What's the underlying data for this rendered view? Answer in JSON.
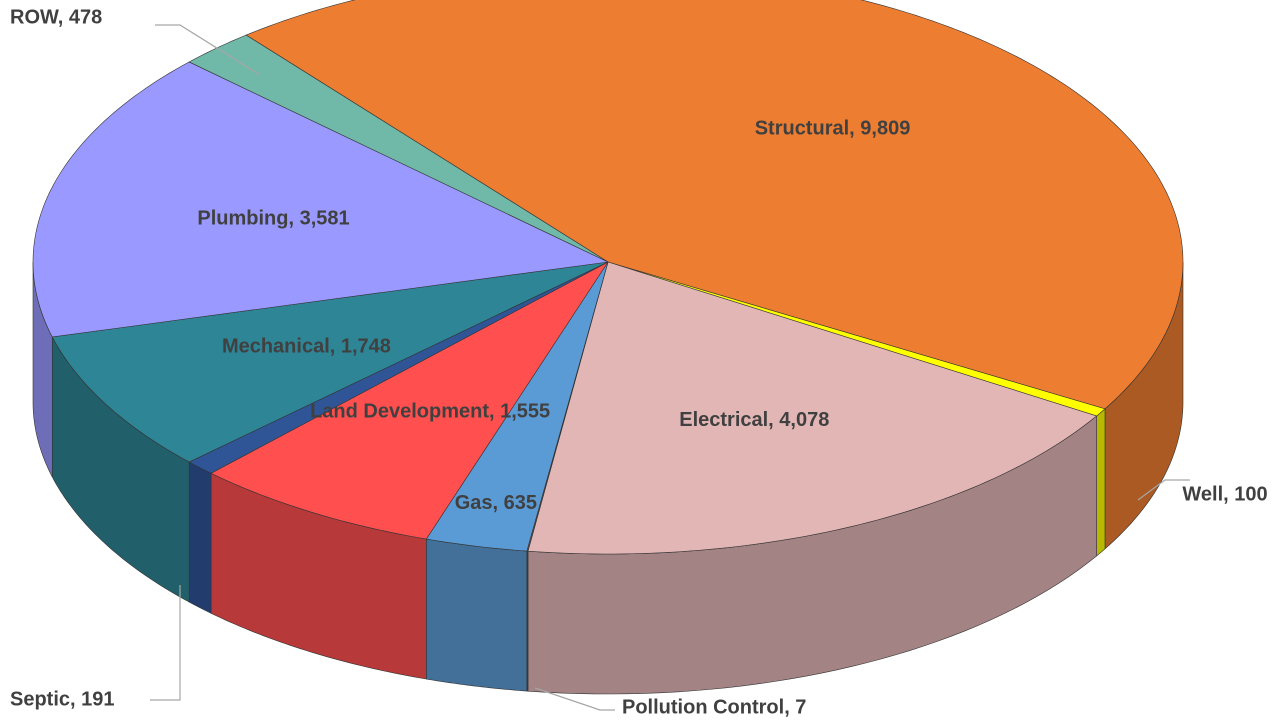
{
  "chart_data": {
    "type": "pie",
    "values": [
      9809,
      100,
      4078,
      7,
      635,
      1555,
      191,
      1748,
      3581,
      478
    ],
    "value_labels": [
      "Structural, 9,809",
      "Well, 100",
      "Electrical, 4,078",
      "Pollution Control, 7",
      "Gas, 635",
      "Land Development, 1,555",
      "Septic, 191",
      "Mechanical, 1,748",
      "Plumbing, 3,581",
      "ROW, 478"
    ],
    "colors": [
      "#ED7D31",
      "#FFFF00",
      "#E3B6B6",
      "#6E4E4E",
      "#5B9BD5",
      "#FF4F4F",
      "#2F5597",
      "#2E8595",
      "#9999FF",
      "#70B8A8"
    ]
  }
}
